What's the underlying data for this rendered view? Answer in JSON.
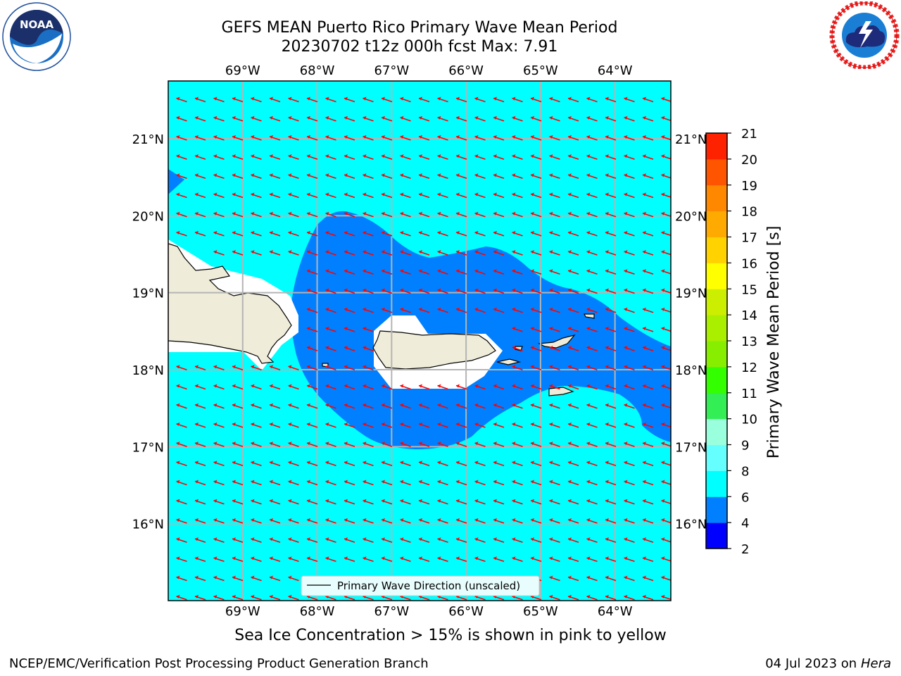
{
  "title": {
    "line1": "GEFS MEAN Puerto Rico Primary Wave Mean Period",
    "line2": "20230702 t12z 000h fcst   Max: 7.91"
  },
  "logos": {
    "left": {
      "icon": "noaa-logo-icon",
      "text": "NOAA",
      "ring_text": "NATIONAL OCEANIC AND ATMOSPHERIC ADMINISTRATION · U.S. DEPARTMENT OF COMMERCE"
    },
    "right": {
      "icon": "nws-logo-icon",
      "ring_text": "NATIONAL WEATHER SERVICE"
    }
  },
  "map": {
    "lon_labels": [
      "69°W",
      "68°W",
      "67°W",
      "66°W",
      "65°W",
      "64°W"
    ],
    "lat_labels": [
      "21°N",
      "20°N",
      "19°N",
      "18°N",
      "17°N",
      "16°N"
    ],
    "lon_values": [
      -69,
      -68,
      -67,
      -66,
      -65,
      -64
    ],
    "lat_values": [
      21,
      20,
      19,
      18,
      17,
      16
    ],
    "lon_range": [
      -70,
      -63.25
    ],
    "lat_range": [
      15,
      21.75
    ],
    "legend_label": "Primary Wave Direction (unscaled)",
    "colors": {
      "background_band": "#00ffff",
      "low_band": "#0080ff",
      "land": "#efecd9",
      "arrow": "#ff0000",
      "grid": "#b4b4b4"
    }
  },
  "colorbar": {
    "title": "Primary Wave Mean Period [s]",
    "ticks": [
      "2",
      "4",
      "6",
      "8",
      "9",
      "10",
      "11",
      "12",
      "13",
      "14",
      "15",
      "16",
      "17",
      "18",
      "19",
      "20",
      "21"
    ],
    "colors": [
      "#0000ff",
      "#0080ff",
      "#00ffff",
      "#66ffff",
      "#99ffdd",
      "#33ee55",
      "#33ff00",
      "#88ee00",
      "#aaee00",
      "#ccee00",
      "#ffff00",
      "#ffd200",
      "#ffaa00",
      "#ff8800",
      "#ff5500",
      "#ff2200",
      "#ff0000"
    ]
  },
  "caption": "Sea Ice Concentration > 15% is shown in pink to yellow",
  "footer": {
    "left": "NCEP/EMC/Verification Post Processing Product Generation Branch",
    "date": "04 Jul 2023 on ",
    "machine": "Hera"
  }
}
